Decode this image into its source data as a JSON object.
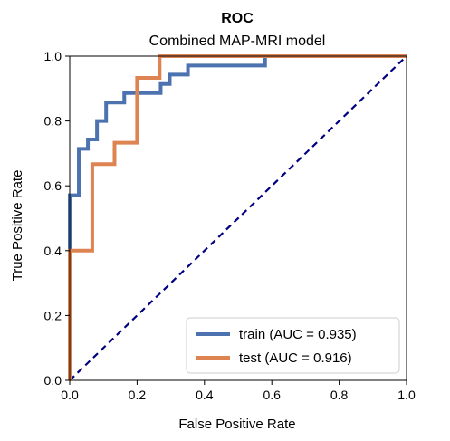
{
  "chart_data": {
    "type": "line",
    "title": "ROC",
    "subtitle": "Combined MAP-MRI model",
    "xlabel": "False Positive Rate",
    "ylabel": "True Positive Rate",
    "xlim": [
      0,
      1
    ],
    "ylim": [
      0,
      1
    ],
    "x_ticks": [
      "0.0",
      "0.2",
      "0.4",
      "0.6",
      "0.8",
      "1.0"
    ],
    "y_ticks": [
      "0.0",
      "0.2",
      "0.4",
      "0.6",
      "0.8",
      "1.0"
    ],
    "grid": false,
    "legend_position": "lower-right",
    "series": [
      {
        "name": "train (AUC = 0.935)",
        "color": "#4C72B0",
        "x": [
          0,
          0,
          0.027,
          0.027,
          0.054,
          0.054,
          0.081,
          0.081,
          0.108,
          0.108,
          0.162,
          0.162,
          0.27,
          0.27,
          0.297,
          0.297,
          0.351,
          0.351,
          0.58,
          0.58,
          1.0
        ],
        "y": [
          0,
          0.571,
          0.571,
          0.714,
          0.714,
          0.743,
          0.743,
          0.8,
          0.8,
          0.857,
          0.857,
          0.886,
          0.886,
          0.914,
          0.914,
          0.943,
          0.943,
          0.971,
          0.971,
          1.0,
          1.0
        ]
      },
      {
        "name": "test (AUC = 0.916)",
        "color": "#DD8452",
        "x": [
          0,
          0,
          0.067,
          0.067,
          0.133,
          0.133,
          0.2,
          0.2,
          0.267,
          0.267,
          1.0
        ],
        "y": [
          0,
          0.4,
          0.4,
          0.667,
          0.667,
          0.733,
          0.733,
          0.933,
          0.933,
          1.0,
          1.0
        ]
      }
    ],
    "reference_line": {
      "color": "#000080",
      "x": [
        0,
        1
      ],
      "y": [
        0,
        1
      ]
    }
  }
}
